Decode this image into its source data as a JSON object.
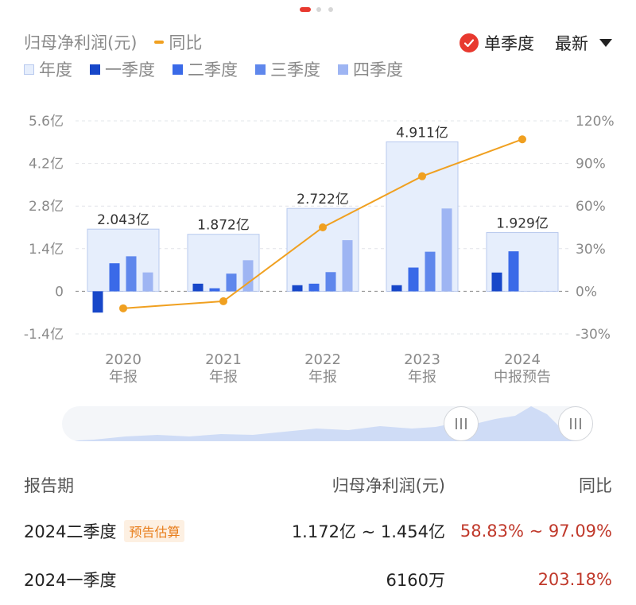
{
  "legend": {
    "top_row": [
      {
        "label": "归母净利润(元)",
        "kind": "title"
      },
      {
        "label": "同比",
        "kind": "line",
        "color": "#f0a020"
      }
    ],
    "bottom_row": [
      {
        "label": "年度",
        "color": "#e6eefc",
        "border": "#b8c9ee"
      },
      {
        "label": "一季度",
        "color": "#1747c9"
      },
      {
        "label": "二季度",
        "color": "#3a6ae8"
      },
      {
        "label": "三季度",
        "color": "#5f87ec"
      },
      {
        "label": "四季度",
        "color": "#9eb5f3"
      }
    ]
  },
  "controls": {
    "quarter_toggle": "单季度",
    "sort": "最新"
  },
  "chart_data": {
    "type": "bar",
    "categories": [
      [
        "2020",
        "年报"
      ],
      [
        "2021",
        "年报"
      ],
      [
        "2022",
        "年报"
      ],
      [
        "2023",
        "年报"
      ],
      [
        "2024",
        "中报预告"
      ]
    ],
    "annual": [
      2.043,
      1.872,
      2.722,
      4.911,
      1.929
    ],
    "annual_labels": [
      "2.043亿",
      "1.872亿",
      "2.722亿",
      "4.911亿",
      "1.929亿"
    ],
    "series": [
      {
        "name": "一季度",
        "color": "#1747c9",
        "values": [
          -0.7,
          0.25,
          0.2,
          0.2,
          0.616
        ]
      },
      {
        "name": "二季度",
        "color": "#3a6ae8",
        "values": [
          0.92,
          0.1,
          0.25,
          0.78,
          1.313
        ]
      },
      {
        "name": "三季度",
        "color": "#5f87ec",
        "values": [
          1.15,
          0.58,
          0.63,
          1.3,
          null
        ]
      },
      {
        "name": "四季度",
        "color": "#9eb5f3",
        "values": [
          0.62,
          1.02,
          1.68,
          2.72,
          null
        ]
      }
    ],
    "yoy": {
      "name": "同比",
      "color": "#f0a020",
      "values": [
        -12,
        -7,
        45,
        81,
        107
      ]
    },
    "y_left": {
      "ticks": [
        5.6,
        4.2,
        2.8,
        1.4,
        0,
        -1.4
      ],
      "tick_labels": [
        "5.6亿",
        "4.2亿",
        "2.8亿",
        "1.4亿",
        "0",
        "-1.4亿"
      ],
      "ylim": [
        -1.4,
        5.6
      ]
    },
    "y_right": {
      "ticks": [
        120,
        90,
        60,
        30,
        0,
        -30
      ],
      "tick_labels": [
        "120%",
        "90%",
        "60%",
        "30%",
        "0%",
        "-30%"
      ],
      "ylim": [
        -30,
        120
      ]
    },
    "grid": true
  },
  "table": {
    "headers": [
      "报告期",
      "归母净利润(元)",
      "同比"
    ],
    "rows": [
      {
        "period": "2024二季度",
        "tag": "预告估算",
        "profit": "1.172亿 ~ 1.454亿",
        "yoy": "58.83% ~ 97.09%"
      },
      {
        "period": "2024一季度",
        "tag": "",
        "profit": "6160万",
        "yoy": "203.18%"
      }
    ]
  }
}
